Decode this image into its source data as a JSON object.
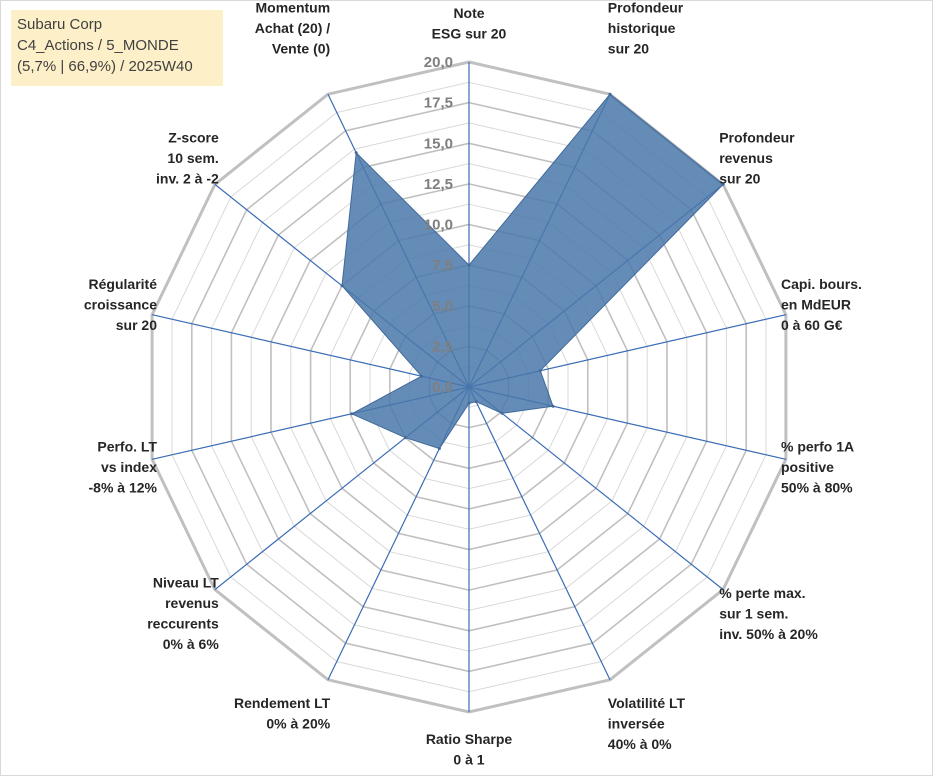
{
  "info_box": {
    "line1": "Subaru Corp",
    "line2": "C4_Actions / 5_MONDE",
    "line3": "(5,7% | 66,9%) / 2025W40"
  },
  "colors": {
    "fill": "#4a78aa",
    "axis": "#3a6db5",
    "grid": "#c0c0c0",
    "grid_inner": "#d9d9d9",
    "info_bg": "#fdf0c8"
  },
  "chart_data": {
    "type": "radar",
    "title": "",
    "r_range": [
      0,
      20
    ],
    "r_ticks": [
      "0,0",
      "2,5",
      "5,0",
      "7,5",
      "10,0",
      "12,5",
      "15,0",
      "17,5",
      "20,0"
    ],
    "gridlines": true,
    "axes": [
      {
        "lines": [
          "Note",
          "ESG sur 20"
        ],
        "value": 7.5
      },
      {
        "lines": [
          "Profondeur",
          "historique",
          "sur 20"
        ],
        "value": 20
      },
      {
        "lines": [
          "Profondeur",
          "revenus",
          "sur 20"
        ],
        "value": 20
      },
      {
        "lines": [
          "Capi. bours.",
          "en MdEUR",
          "0 à 60 G€"
        ],
        "value": 4.5
      },
      {
        "lines": [
          "% perfo 1A",
          "positive",
          "50% à 80%"
        ],
        "value": 5.3
      },
      {
        "lines": [
          "% perte max.",
          "sur 1 sem.",
          "inv. 50% à 20%"
        ],
        "value": 2.6
      },
      {
        "lines": [
          "Volatilité LT",
          "inversée",
          "40% à 0%"
        ],
        "value": 1.0
      },
      {
        "lines": [
          "Ratio Sharpe",
          "0 à 1"
        ],
        "value": 1.0
      },
      {
        "lines": [
          "Rendement LT",
          "0% à 20%"
        ],
        "value": 4.2
      },
      {
        "lines": [
          "Niveau LT",
          "revenus",
          "reccurents",
          "0% à 6%"
        ],
        "value": 5.0
      },
      {
        "lines": [
          "Perfo. LT",
          "vs index",
          "-8% à 12%"
        ],
        "value": 7.4
      },
      {
        "lines": [
          "Régularité",
          "croissance",
          "sur 20"
        ],
        "value": 3.0
      },
      {
        "lines": [
          "Z-score",
          "10 sem.",
          "inv. 2 à -2"
        ],
        "value": 10.0
      },
      {
        "lines": [
          "Momentum",
          "Achat (20) /",
          "Vente (0)"
        ],
        "value": 16.0
      }
    ]
  }
}
